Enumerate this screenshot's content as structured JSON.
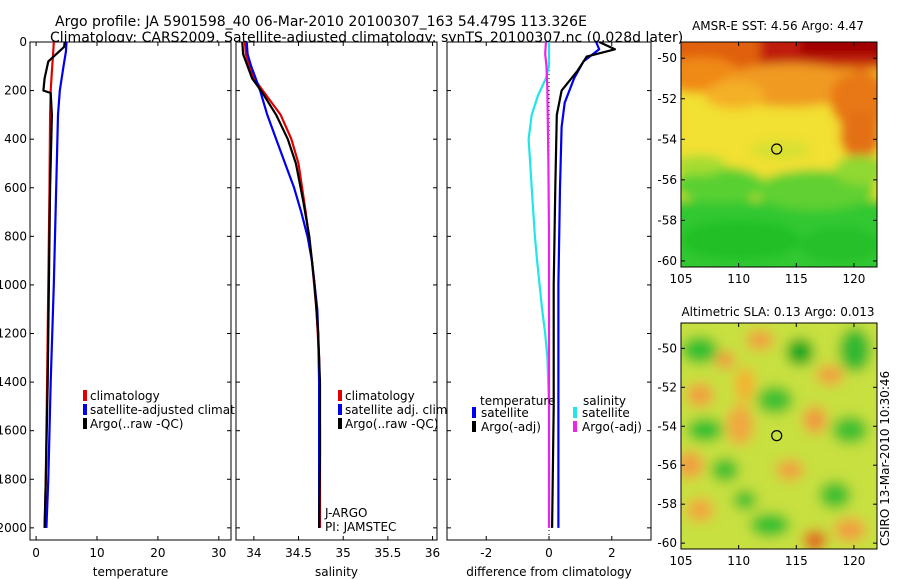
{
  "header": {
    "line1": "Argo profile: JA 5901598_40 06-Mar-2010 20100307_163 54.479S 113.326E",
    "line2": "Climatology: CARS2009. Satellite-adjusted climatology: synTS_20100307.nc (0.028d later)"
  },
  "credit": "CSIRO 13-Mar-2010 10:30:46",
  "colors": {
    "red": "#e00000",
    "blue": "#0000ee",
    "black": "#000000",
    "cyan": "#22e5e5",
    "magenta": "#ee22ee"
  },
  "chart_data": [
    {
      "id": "temperature",
      "type": "line",
      "xlabel": "temperature",
      "xlim": [
        -1,
        32
      ],
      "ylim": [
        0,
        2050
      ],
      "y_ticks": [
        0,
        200,
        400,
        600,
        800,
        1000,
        1200,
        1400,
        1600,
        1800,
        2000
      ],
      "x_ticks": [
        0,
        10,
        20,
        30
      ],
      "x_tick_labels": [
        "0",
        "10",
        "20",
        "30"
      ],
      "legend": {
        "position": "lower-center",
        "entries": [
          "climatology",
          "satellite-adjusted climatolog",
          "Argo(..raw -QC)"
        ]
      },
      "series": [
        {
          "name": "climatology",
          "color": "red",
          "points": [
            [
              2.9,
              0
            ],
            [
              2.8,
              50
            ],
            [
              2.6,
              120
            ],
            [
              2.4,
              200
            ],
            [
              2.3,
              300
            ],
            [
              2.2,
              600
            ],
            [
              2.0,
              1000
            ],
            [
              1.8,
              1400
            ],
            [
              1.6,
              1800
            ],
            [
              1.4,
              2000
            ]
          ]
        },
        {
          "name": "satellite-adjusted climatology",
          "color": "blue",
          "points": [
            [
              5.0,
              0
            ],
            [
              4.9,
              40
            ],
            [
              4.5,
              100
            ],
            [
              3.9,
              200
            ],
            [
              3.6,
              300
            ],
            [
              3.3,
              600
            ],
            [
              2.9,
              1000
            ],
            [
              2.4,
              1400
            ],
            [
              2.0,
              1800
            ],
            [
              1.7,
              2000
            ]
          ]
        },
        {
          "name": "Argo(..raw -QC)",
          "color": "black",
          "points": [
            [
              4.7,
              0
            ],
            [
              4.6,
              20
            ],
            [
              2.0,
              80
            ],
            [
              1.4,
              150
            ],
            [
              1.2,
              200
            ],
            [
              2.4,
              210
            ],
            [
              2.6,
              300
            ],
            [
              2.3,
              600
            ],
            [
              2.1,
              1000
            ],
            [
              1.9,
              1400
            ],
            [
              1.6,
              1800
            ],
            [
              1.4,
              2000
            ]
          ]
        }
      ]
    },
    {
      "id": "salinity",
      "type": "line",
      "xlabel": "salinity",
      "xlim": [
        33.8,
        36.05
      ],
      "ylim": [
        0,
        2050
      ],
      "y_ticks": [
        0,
        200,
        400,
        600,
        800,
        1000,
        1200,
        1400,
        1600,
        1800,
        2000
      ],
      "x_ticks": [
        34,
        34.5,
        35,
        35.5,
        36
      ],
      "x_tick_labels": [
        "34",
        "34.5",
        "35",
        "35.5",
        "36"
      ],
      "legend": {
        "position": "lower-center",
        "entries": [
          "climatology",
          "satellite adj. clim.",
          "Argo(..raw -QC)"
        ]
      },
      "annotation": [
        "J-ARGO",
        "PI: JAMSTEC"
      ],
      "series": [
        {
          "name": "climatology",
          "color": "red",
          "points": [
            [
              33.9,
              0
            ],
            [
              33.91,
              50
            ],
            [
              33.95,
              100
            ],
            [
              34.0,
              150
            ],
            [
              34.1,
              200
            ],
            [
              34.3,
              300
            ],
            [
              34.42,
              400
            ],
            [
              34.5,
              500
            ],
            [
              34.58,
              700
            ],
            [
              34.65,
              900
            ],
            [
              34.7,
              1100
            ],
            [
              34.73,
              1300
            ],
            [
              34.74,
              1600
            ],
            [
              34.74,
              2000
            ]
          ]
        },
        {
          "name": "satellite adj. clim.",
          "color": "blue",
          "points": [
            [
              33.92,
              0
            ],
            [
              33.93,
              50
            ],
            [
              33.97,
              100
            ],
            [
              34.02,
              150
            ],
            [
              34.07,
              200
            ],
            [
              34.15,
              300
            ],
            [
              34.25,
              400
            ],
            [
              34.35,
              500
            ],
            [
              34.45,
              600
            ],
            [
              34.53,
              700
            ],
            [
              34.6,
              800
            ],
            [
              34.65,
              900
            ],
            [
              34.68,
              1000
            ],
            [
              34.71,
              1100
            ],
            [
              34.72,
              1200
            ],
            [
              34.73,
              1400
            ],
            [
              34.73,
              2000
            ]
          ]
        },
        {
          "name": "Argo(..raw -QC)",
          "color": "black",
          "points": [
            [
              33.87,
              0
            ],
            [
              33.88,
              50
            ],
            [
              33.93,
              100
            ],
            [
              33.98,
              150
            ],
            [
              34.08,
              200
            ],
            [
              34.25,
              300
            ],
            [
              34.38,
              400
            ],
            [
              34.47,
              500
            ],
            [
              34.55,
              650
            ],
            [
              34.62,
              800
            ],
            [
              34.68,
              1000
            ],
            [
              34.72,
              1200
            ],
            [
              34.74,
              1400
            ],
            [
              34.74,
              1700
            ],
            [
              34.73,
              2000
            ]
          ]
        }
      ]
    },
    {
      "id": "difference",
      "type": "line",
      "xlabel": "difference from climatology",
      "xlim": [
        -3.25,
        3.25
      ],
      "ylim": [
        0,
        2050
      ],
      "y_ticks": [
        0,
        200,
        400,
        600,
        800,
        1000,
        1200,
        1400,
        1600,
        1800,
        2000
      ],
      "x_ticks": [
        -2,
        0,
        2
      ],
      "x_tick_labels": [
        "-2",
        "0",
        "2"
      ],
      "legend": {
        "position": "lower-center",
        "temperature_heading": "temperature",
        "salinity_heading": "salinity",
        "temperature_entries": [
          "satellite",
          "Argo(-adj)"
        ],
        "salinity_entries": [
          "satellite",
          "Argo(-adj)"
        ]
      },
      "series": [
        {
          "name": "temperature satellite",
          "color": "blue",
          "points": [
            [
              1.5,
              0
            ],
            [
              1.6,
              30
            ],
            [
              1.1,
              80
            ],
            [
              0.8,
              150
            ],
            [
              0.5,
              250
            ],
            [
              0.4,
              350
            ],
            [
              0.35,
              600
            ],
            [
              0.3,
              1000
            ],
            [
              0.3,
              1500
            ],
            [
              0.3,
              2000
            ]
          ]
        },
        {
          "name": "temperature Argo(-adj)",
          "color": "black",
          "points": [
            [
              1.6,
              0
            ],
            [
              2.1,
              30
            ],
            [
              1.2,
              60
            ],
            [
              0.9,
              120
            ],
            [
              0.4,
              200
            ],
            [
              0.25,
              300
            ],
            [
              0.2,
              600
            ],
            [
              0.15,
              1000
            ],
            [
              0.15,
              1500
            ],
            [
              0.1,
              2000
            ]
          ]
        },
        {
          "name": "salinity satellite",
          "color": "cyan",
          "points": [
            [
              0.0,
              0
            ],
            [
              0.0,
              100
            ],
            [
              -0.1,
              150
            ],
            [
              -0.35,
              220
            ],
            [
              -0.55,
              300
            ],
            [
              -0.65,
              400
            ],
            [
              -0.6,
              500
            ],
            [
              -0.55,
              600
            ],
            [
              -0.5,
              700
            ],
            [
              -0.45,
              800
            ],
            [
              -0.38,
              900
            ],
            [
              -0.3,
              1000
            ],
            [
              -0.22,
              1100
            ],
            [
              -0.12,
              1200
            ],
            [
              -0.05,
              1300
            ],
            [
              0.0,
              1500
            ],
            [
              0.0,
              2000
            ]
          ]
        },
        {
          "name": "salinity Argo(-adj)",
          "color": "magenta",
          "points": [
            [
              -0.1,
              0
            ],
            [
              -0.12,
              50
            ],
            [
              -0.08,
              100
            ],
            [
              -0.05,
              200
            ],
            [
              -0.04,
              300
            ],
            [
              -0.02,
              500
            ],
            [
              0.0,
              800
            ],
            [
              0.0,
              1200
            ],
            [
              0.0,
              2000
            ]
          ]
        }
      ]
    },
    {
      "id": "sst_map",
      "type": "heatmap",
      "title": "AMSR-E SST: 4.56 Argo: 4.47",
      "xlim": [
        105,
        122
      ],
      "ylim": [
        -60.3,
        -49.2
      ],
      "x_ticks": [
        105,
        110,
        115,
        120
      ],
      "y_ticks": [
        -60,
        -58,
        -56,
        -54,
        -52,
        -50
      ],
      "x_tick_labels": [
        "105",
        "110",
        "115",
        "120"
      ],
      "y_tick_labels": [
        "-60",
        "-58",
        "-56",
        "-54",
        "-52",
        "-50"
      ],
      "marker": {
        "lon": 113.3,
        "lat": -54.48
      }
    },
    {
      "id": "sla_map",
      "type": "heatmap",
      "title": "Altimetric SLA: 0.13 Argo: 0.013",
      "xlim": [
        105,
        122
      ],
      "ylim": [
        -60.3,
        -48.7
      ],
      "x_ticks": [
        105,
        110,
        115,
        120
      ],
      "y_ticks": [
        -60,
        -58,
        -56,
        -54,
        -52,
        -50
      ],
      "x_tick_labels": [
        "105",
        "110",
        "115",
        "120"
      ],
      "y_tick_labels": [
        "-60",
        "-58",
        "-56",
        "-54",
        "-52",
        "-50"
      ],
      "marker": {
        "lon": 113.3,
        "lat": -54.48
      }
    }
  ]
}
